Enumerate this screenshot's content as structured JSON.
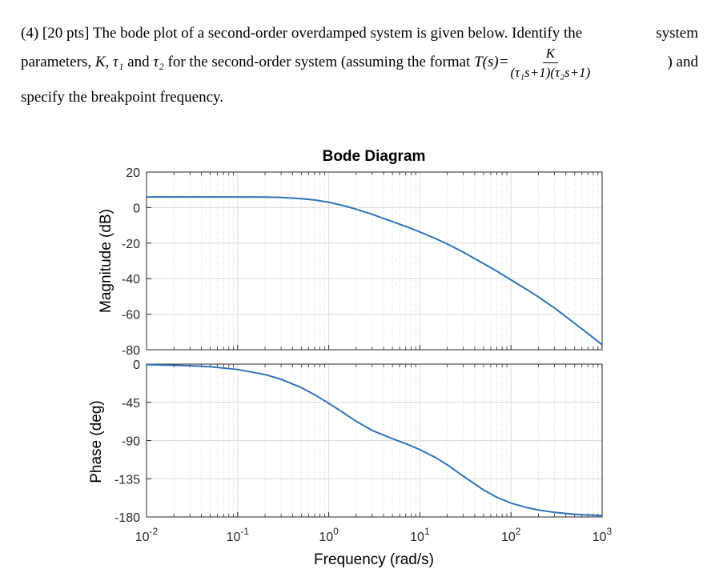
{
  "question": {
    "line1_left": "(4) [20 pts] The bode plot of a second-order overdamped system is given below. Identify the",
    "line1_right": "system",
    "line2_a": "parameters, ",
    "line2_K": "K",
    "line2_b": ", ",
    "line2_tau1": "τ₁",
    "line2_c": " and ",
    "line2_tau2": "τ₂",
    "line2_d": " for the second-order system (assuming the format ",
    "line2_T": "T(s)=",
    "frac_num": "K",
    "frac_den": "(τ₁s+1)(τ₂s+1)",
    "line2_end": ") and",
    "line3": "specify the breakpoint frequency."
  },
  "chart_data": {
    "type": "line",
    "title": "Bode Diagram",
    "xlabel": "Frequency  (rad/s)",
    "xscale": "log",
    "xlim": [
      0.01,
      1000
    ],
    "x_tick_labels": [
      "10-2",
      "10-1",
      "100",
      "101",
      "102",
      "103"
    ],
    "x_tick_values": [
      0.01,
      0.1,
      1,
      10,
      100,
      1000
    ],
    "grid": true,
    "line_color": "#2f73b9",
    "panels": [
      {
        "name": "magnitude",
        "ylabel": "Magnitude (dB)",
        "ylim": [
          -80,
          20
        ],
        "y_ticks": [
          20,
          0,
          -20,
          -40,
          -60,
          -80
        ],
        "series": [
          {
            "x": [
              0.01,
              0.05,
              0.1,
              0.2,
              0.3,
              0.5,
              0.7,
              1,
              1.5,
              2,
              3,
              5,
              7,
              10,
              15,
              20,
              30,
              50,
              70,
              100,
              150,
              200,
              300,
              500,
              700,
              1000
            ],
            "values": [
              6,
              6,
              6,
              5.9,
              5.7,
              5.0,
              4.3,
              3.0,
              0.9,
              -0.9,
              -3.8,
              -7.9,
              -10.6,
              -13.7,
              -17.5,
              -20.5,
              -25.1,
              -31.5,
              -35.8,
              -40.7,
              -46.2,
              -50.3,
              -56.5,
              -65.2,
              -70.9,
              -77.2
            ]
          }
        ]
      },
      {
        "name": "phase",
        "ylabel": "Phase (deg)",
        "ylim": [
          -180,
          0
        ],
        "y_ticks": [
          0,
          -45,
          -90,
          -135,
          -180
        ],
        "series": [
          {
            "x": [
              0.01,
              0.03,
              0.05,
              0.1,
              0.2,
              0.3,
              0.5,
              0.7,
              1,
              1.5,
              2,
              3,
              5,
              7,
              10,
              15,
              20,
              30,
              50,
              70,
              100,
              150,
              200,
              300,
              500,
              700,
              1000
            ],
            "values": [
              -0.6,
              -1.9,
              -3.1,
              -6.3,
              -12.3,
              -17.8,
              -27.6,
              -36,
              -46.1,
              -58.4,
              -67.3,
              -78.1,
              -87.8,
              -93.7,
              -100.7,
              -110.2,
              -118.6,
              -132,
              -148.2,
              -156.8,
              -163.7,
              -169,
              -171.8,
              -174.6,
              -176.8,
              -177.7,
              -178.4
            ]
          }
        ]
      }
    ]
  }
}
